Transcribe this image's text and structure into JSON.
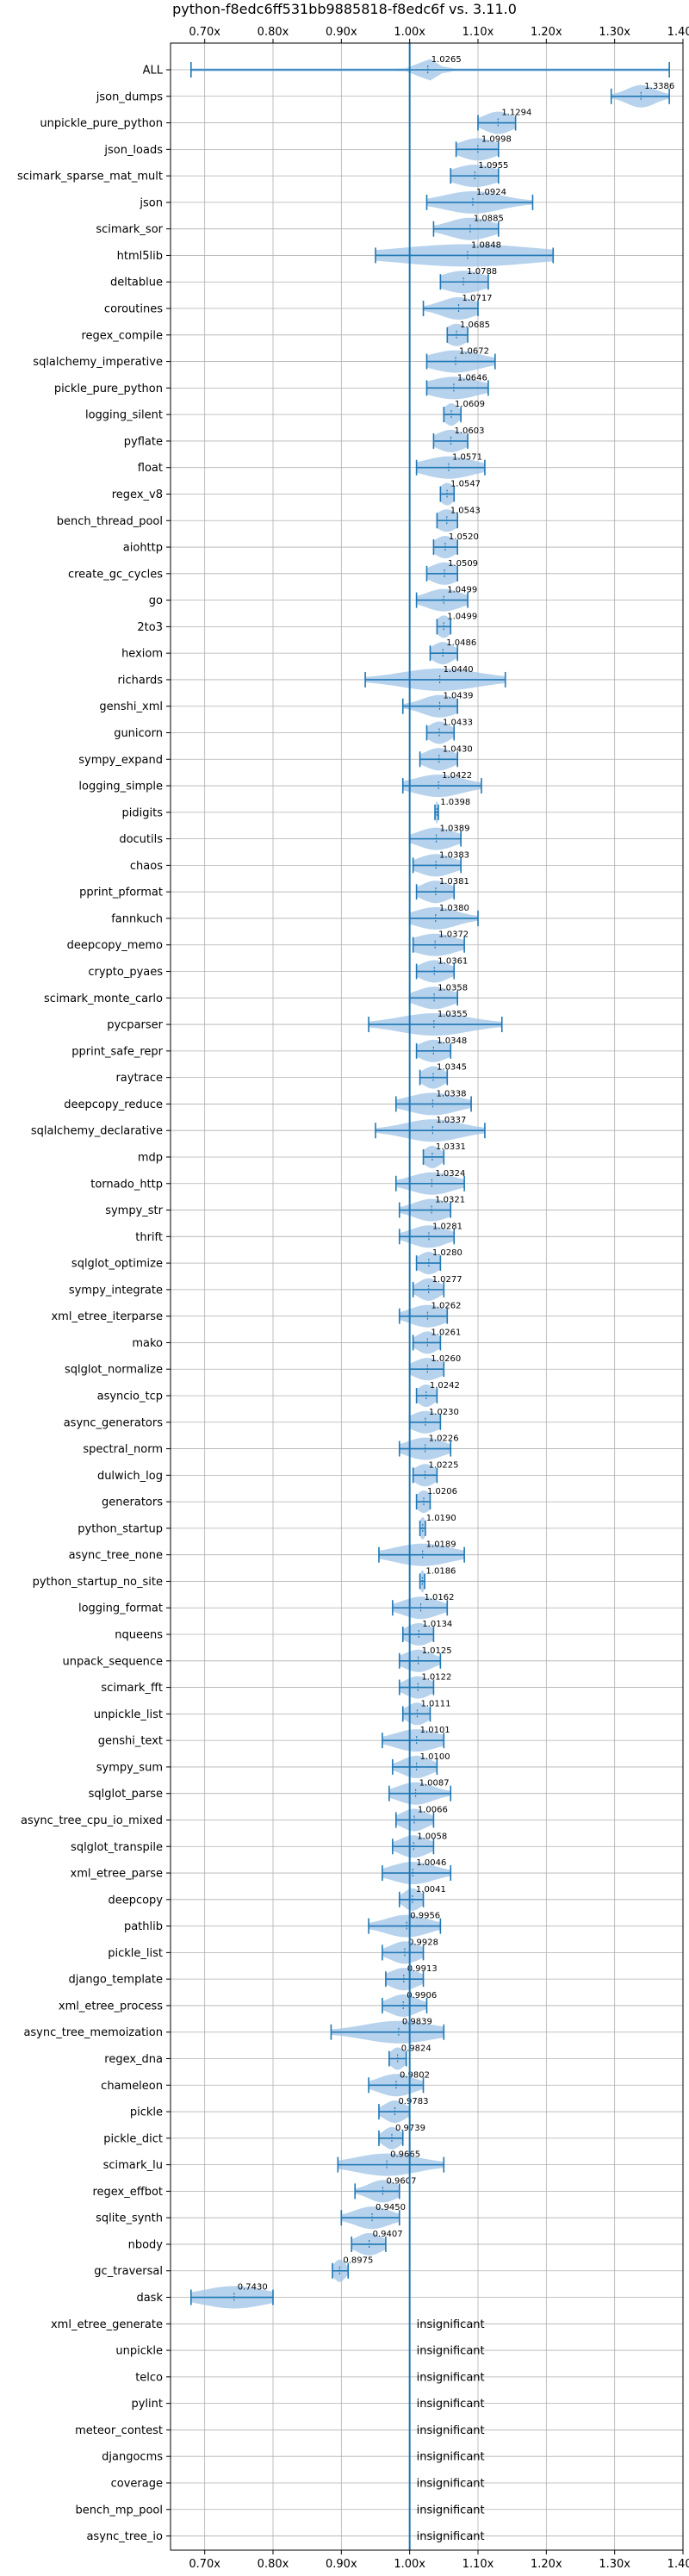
{
  "chart_data": {
    "type": "violin",
    "title": "python-f8edc6ff531bb9885818-f8edc6f vs. 3.11.0",
    "xlim": [
      0.65,
      1.4
    ],
    "xticks": [
      0.7,
      0.8,
      0.9,
      1.0,
      1.1,
      1.2,
      1.3,
      1.4
    ],
    "xtick_labels": [
      "0.70x",
      "0.80x",
      "0.90x",
      "1.00x",
      "1.10x",
      "1.20x",
      "1.30x",
      "1.40x"
    ],
    "reference_line": 1.0,
    "grid": true,
    "colors": {
      "violin": "#9ec3e6",
      "line": "#1f77b4",
      "grid": "#b0b0b0"
    },
    "insignificant_text": "insignificant",
    "rows": [
      {
        "name": "ALL",
        "value": 1.0265,
        "min": 0.68,
        "max": 1.38,
        "spread": 0.012
      },
      {
        "name": "json_dumps",
        "value": 1.3386,
        "min": 1.295,
        "max": 1.38,
        "spread": 0.02
      },
      {
        "name": "unpickle_pure_python",
        "value": 1.1294,
        "min": 1.1,
        "max": 1.155,
        "spread": 0.02
      },
      {
        "name": "json_loads",
        "value": 1.0998,
        "min": 1.068,
        "max": 1.13,
        "spread": 0.025
      },
      {
        "name": "scimark_sparse_mat_mult",
        "value": 1.0955,
        "min": 1.06,
        "max": 1.13,
        "spread": 0.03
      },
      {
        "name": "json",
        "value": 1.0924,
        "min": 1.025,
        "max": 1.18,
        "spread": 0.04
      },
      {
        "name": "scimark_sor",
        "value": 1.0885,
        "min": 1.035,
        "max": 1.13,
        "spread": 0.03
      },
      {
        "name": "html5lib",
        "value": 1.0848,
        "min": 0.95,
        "max": 1.21,
        "spread": 0.1
      },
      {
        "name": "deltablue",
        "value": 1.0788,
        "min": 1.045,
        "max": 1.115,
        "spread": 0.03
      },
      {
        "name": "coroutines",
        "value": 1.0717,
        "min": 1.02,
        "max": 1.1,
        "spread": 0.025
      },
      {
        "name": "regex_compile",
        "value": 1.0685,
        "min": 1.055,
        "max": 1.085,
        "spread": 0.015
      },
      {
        "name": "sqlalchemy_imperative",
        "value": 1.0672,
        "min": 1.025,
        "max": 1.125,
        "spread": 0.035
      },
      {
        "name": "pickle_pure_python",
        "value": 1.0646,
        "min": 1.025,
        "max": 1.115,
        "spread": 0.035
      },
      {
        "name": "logging_silent",
        "value": 1.0609,
        "min": 1.05,
        "max": 1.075,
        "spread": 0.01
      },
      {
        "name": "pyflate",
        "value": 1.0603,
        "min": 1.035,
        "max": 1.085,
        "spread": 0.02
      },
      {
        "name": "float",
        "value": 1.0571,
        "min": 1.01,
        "max": 1.11,
        "spread": 0.035
      },
      {
        "name": "regex_v8",
        "value": 1.0547,
        "min": 1.045,
        "max": 1.065,
        "spread": 0.01
      },
      {
        "name": "bench_thread_pool",
        "value": 1.0543,
        "min": 1.04,
        "max": 1.07,
        "spread": 0.015
      },
      {
        "name": "aiohttp",
        "value": 1.052,
        "min": 1.035,
        "max": 1.07,
        "spread": 0.015
      },
      {
        "name": "create_gc_cycles",
        "value": 1.0509,
        "min": 1.025,
        "max": 1.07,
        "spread": 0.02
      },
      {
        "name": "go",
        "value": 1.0499,
        "min": 1.01,
        "max": 1.085,
        "spread": 0.025
      },
      {
        "name": "2to3",
        "value": 1.0499,
        "min": 1.04,
        "max": 1.06,
        "spread": 0.01
      },
      {
        "name": "hexiom",
        "value": 1.0486,
        "min": 1.03,
        "max": 1.07,
        "spread": 0.015
      },
      {
        "name": "richards",
        "value": 1.044,
        "min": 0.935,
        "max": 1.14,
        "spread": 0.055
      },
      {
        "name": "genshi_xml",
        "value": 1.0439,
        "min": 0.99,
        "max": 1.07,
        "spread": 0.025
      },
      {
        "name": "gunicorn",
        "value": 1.0433,
        "min": 1.025,
        "max": 1.065,
        "spread": 0.015
      },
      {
        "name": "sympy_expand",
        "value": 1.043,
        "min": 1.015,
        "max": 1.07,
        "spread": 0.02
      },
      {
        "name": "logging_simple",
        "value": 1.0422,
        "min": 0.99,
        "max": 1.105,
        "spread": 0.035
      },
      {
        "name": "pidigits",
        "value": 1.0398,
        "min": 1.037,
        "max": 1.042,
        "spread": 0.002
      },
      {
        "name": "docutils",
        "value": 1.0389,
        "min": 1.0,
        "max": 1.075,
        "spread": 0.025
      },
      {
        "name": "chaos",
        "value": 1.0383,
        "min": 1.005,
        "max": 1.075,
        "spread": 0.025
      },
      {
        "name": "pprint_pformat",
        "value": 1.0381,
        "min": 1.01,
        "max": 1.065,
        "spread": 0.02
      },
      {
        "name": "fannkuch",
        "value": 1.038,
        "min": 1.0,
        "max": 1.1,
        "spread": 0.03
      },
      {
        "name": "deepcopy_memo",
        "value": 1.0372,
        "min": 1.005,
        "max": 1.08,
        "spread": 0.03
      },
      {
        "name": "crypto_pyaes",
        "value": 1.0361,
        "min": 1.01,
        "max": 1.065,
        "spread": 0.02
      },
      {
        "name": "scimark_monte_carlo",
        "value": 1.0358,
        "min": 1.0,
        "max": 1.07,
        "spread": 0.025
      },
      {
        "name": "pycparser",
        "value": 1.0355,
        "min": 0.94,
        "max": 1.135,
        "spread": 0.05
      },
      {
        "name": "pprint_safe_repr",
        "value": 1.0348,
        "min": 1.01,
        "max": 1.06,
        "spread": 0.02
      },
      {
        "name": "raytrace",
        "value": 1.0345,
        "min": 1.015,
        "max": 1.055,
        "spread": 0.015
      },
      {
        "name": "deepcopy_reduce",
        "value": 1.0338,
        "min": 0.98,
        "max": 1.09,
        "spread": 0.035
      },
      {
        "name": "sqlalchemy_declarative",
        "value": 1.0337,
        "min": 0.95,
        "max": 1.11,
        "spread": 0.04
      },
      {
        "name": "mdp",
        "value": 1.0331,
        "min": 1.02,
        "max": 1.05,
        "spread": 0.012
      },
      {
        "name": "tornado_http",
        "value": 1.0324,
        "min": 0.98,
        "max": 1.08,
        "spread": 0.03
      },
      {
        "name": "sympy_str",
        "value": 1.0321,
        "min": 0.985,
        "max": 1.06,
        "spread": 0.025
      },
      {
        "name": "thrift",
        "value": 1.0281,
        "min": 0.985,
        "max": 1.065,
        "spread": 0.025
      },
      {
        "name": "sqlglot_optimize",
        "value": 1.028,
        "min": 1.01,
        "max": 1.045,
        "spread": 0.015
      },
      {
        "name": "sympy_integrate",
        "value": 1.0277,
        "min": 1.005,
        "max": 1.05,
        "spread": 0.015
      },
      {
        "name": "xml_etree_iterparse",
        "value": 1.0262,
        "min": 0.985,
        "max": 1.055,
        "spread": 0.025
      },
      {
        "name": "mako",
        "value": 1.0261,
        "min": 1.005,
        "max": 1.045,
        "spread": 0.015
      },
      {
        "name": "sqlglot_normalize",
        "value": 1.026,
        "min": 1.0,
        "max": 1.05,
        "spread": 0.02
      },
      {
        "name": "asyncio_tcp",
        "value": 1.0242,
        "min": 1.01,
        "max": 1.04,
        "spread": 0.012
      },
      {
        "name": "async_generators",
        "value": 1.023,
        "min": 1.0,
        "max": 1.045,
        "spread": 0.02
      },
      {
        "name": "spectral_norm",
        "value": 1.0226,
        "min": 0.985,
        "max": 1.06,
        "spread": 0.025
      },
      {
        "name": "dulwich_log",
        "value": 1.0225,
        "min": 1.005,
        "max": 1.04,
        "spread": 0.015
      },
      {
        "name": "generators",
        "value": 1.0206,
        "min": 1.01,
        "max": 1.03,
        "spread": 0.01
      },
      {
        "name": "python_startup",
        "value": 1.019,
        "min": 1.015,
        "max": 1.023,
        "spread": 0.004
      },
      {
        "name": "async_tree_none",
        "value": 1.0189,
        "min": 0.955,
        "max": 1.08,
        "spread": 0.04
      },
      {
        "name": "python_startup_no_site",
        "value": 1.0186,
        "min": 1.015,
        "max": 1.022,
        "spread": 0.003
      },
      {
        "name": "logging_format",
        "value": 1.0162,
        "min": 0.975,
        "max": 1.055,
        "spread": 0.025
      },
      {
        "name": "nqueens",
        "value": 1.0134,
        "min": 0.99,
        "max": 1.035,
        "spread": 0.018
      },
      {
        "name": "unpack_sequence",
        "value": 1.0125,
        "min": 0.985,
        "max": 1.045,
        "spread": 0.02
      },
      {
        "name": "scimark_fft",
        "value": 1.0122,
        "min": 0.985,
        "max": 1.035,
        "spread": 0.018
      },
      {
        "name": "unpickle_list",
        "value": 1.0111,
        "min": 0.99,
        "max": 1.03,
        "spread": 0.015
      },
      {
        "name": "genshi_text",
        "value": 1.0101,
        "min": 0.96,
        "max": 1.05,
        "spread": 0.03
      },
      {
        "name": "sympy_sum",
        "value": 1.01,
        "min": 0.975,
        "max": 1.04,
        "spread": 0.02
      },
      {
        "name": "sqlglot_parse",
        "value": 1.0087,
        "min": 0.97,
        "max": 1.06,
        "spread": 0.025
      },
      {
        "name": "async_tree_cpu_io_mixed",
        "value": 1.0066,
        "min": 0.98,
        "max": 1.035,
        "spread": 0.018
      },
      {
        "name": "sqlglot_transpile",
        "value": 1.0058,
        "min": 0.975,
        "max": 1.035,
        "spread": 0.02
      },
      {
        "name": "xml_etree_parse",
        "value": 1.0046,
        "min": 0.96,
        "max": 1.06,
        "spread": 0.03
      },
      {
        "name": "deepcopy",
        "value": 1.0041,
        "min": 0.985,
        "max": 1.02,
        "spread": 0.012
      },
      {
        "name": "pathlib",
        "value": 0.9956,
        "min": 0.94,
        "max": 1.045,
        "spread": 0.03
      },
      {
        "name": "pickle_list",
        "value": 0.9928,
        "min": 0.96,
        "max": 1.02,
        "spread": 0.02
      },
      {
        "name": "django_template",
        "value": 0.9913,
        "min": 0.965,
        "max": 1.02,
        "spread": 0.02
      },
      {
        "name": "xml_etree_process",
        "value": 0.9906,
        "min": 0.96,
        "max": 1.025,
        "spread": 0.02
      },
      {
        "name": "async_tree_memoization",
        "value": 0.9839,
        "min": 0.885,
        "max": 1.05,
        "spread": 0.05
      },
      {
        "name": "regex_dna",
        "value": 0.9824,
        "min": 0.97,
        "max": 0.995,
        "spread": 0.01
      },
      {
        "name": "chameleon",
        "value": 0.9802,
        "min": 0.94,
        "max": 1.02,
        "spread": 0.025
      },
      {
        "name": "pickle",
        "value": 0.9783,
        "min": 0.955,
        "max": 1.0,
        "spread": 0.015
      },
      {
        "name": "pickle_dict",
        "value": 0.9739,
        "min": 0.955,
        "max": 0.99,
        "spread": 0.012
      },
      {
        "name": "scimark_lu",
        "value": 0.9665,
        "min": 0.895,
        "max": 1.05,
        "spread": 0.045
      },
      {
        "name": "regex_effbot",
        "value": 0.9607,
        "min": 0.92,
        "max": 0.985,
        "spread": 0.02
      },
      {
        "name": "sqlite_synth",
        "value": 0.945,
        "min": 0.9,
        "max": 0.985,
        "spread": 0.025
      },
      {
        "name": "nbody",
        "value": 0.9407,
        "min": 0.915,
        "max": 0.965,
        "spread": 0.018
      },
      {
        "name": "gc_traversal",
        "value": 0.8975,
        "min": 0.887,
        "max": 0.91,
        "spread": 0.008
      },
      {
        "name": "dask",
        "value": 0.743,
        "min": 0.68,
        "max": 0.8,
        "spread": 0.045
      },
      {
        "name": "xml_etree_generate",
        "insignificant": true
      },
      {
        "name": "unpickle",
        "insignificant": true
      },
      {
        "name": "telco",
        "insignificant": true
      },
      {
        "name": "pylint",
        "insignificant": true
      },
      {
        "name": "meteor_contest",
        "insignificant": true
      },
      {
        "name": "djangocms",
        "insignificant": true
      },
      {
        "name": "coverage",
        "insignificant": true
      },
      {
        "name": "bench_mp_pool",
        "insignificant": true
      },
      {
        "name": "async_tree_io",
        "insignificant": true
      }
    ]
  }
}
